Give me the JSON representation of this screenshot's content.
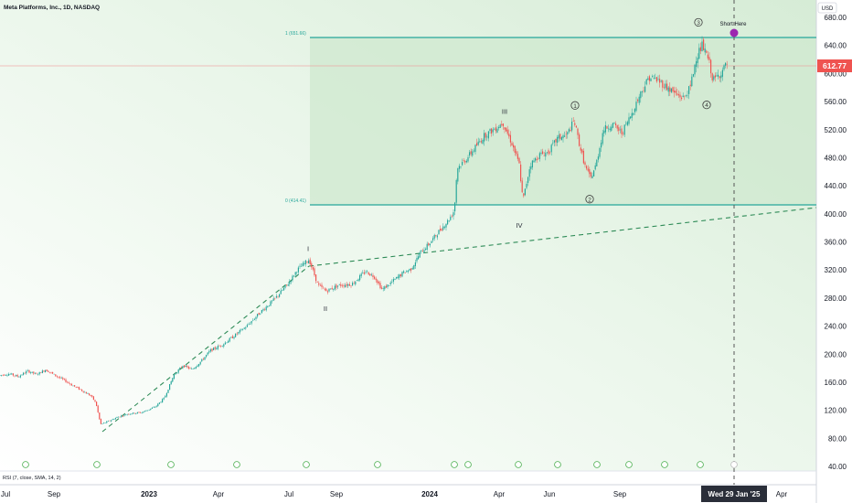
{
  "title": "Meta Platforms, Inc., 1D, NASDAQ",
  "currency": "USD",
  "last_price": "612.77",
  "short_label": "Short Here",
  "rsi_label": "RSI (7, close, SMA, 14, 2)",
  "crosshair_date": "Wed 29 Jan '25",
  "fib_top_label": "1 (651.66)",
  "fib_bottom_label": "0 (414.41)",
  "colors": {
    "up": "#26a69a",
    "down": "#ef5350",
    "fib_zone": "#cfe8cf",
    "trend": "#2e8b57",
    "price_badge": "#ef5350",
    "crosshair_badge": "#2a2e39"
  },
  "chart_data": {
    "type": "candlestick",
    "y_ticks": [
      "680.00",
      "640.00",
      "600.00",
      "560.00",
      "520.00",
      "480.00",
      "440.00",
      "400.00",
      "360.00",
      "320.00",
      "280.00",
      "240.00",
      "200.00",
      "160.00",
      "120.00",
      "80.00",
      "40.00"
    ],
    "ylim": [
      40,
      680
    ],
    "x_ticks": [
      "Jul",
      "Sep",
      "2023",
      "Apr",
      "Jul",
      "Sep",
      "2024",
      "Apr",
      "Jun",
      "Sep",
      "Apr"
    ],
    "fib_levels": [
      {
        "ratio": 1,
        "price": 651.66
      },
      {
        "ratio": 0,
        "price": 414.41
      }
    ],
    "last_price": 612.77,
    "wave_labels": [
      {
        "text": "I",
        "price": 340
      },
      {
        "text": "II",
        "price": 283
      },
      {
        "text": "III",
        "price": 535
      },
      {
        "text": "IV",
        "price": 412
      },
      {
        "text": "1",
        "price": 548
      },
      {
        "text": "2",
        "price": 447
      },
      {
        "text": "3",
        "price": 656
      },
      {
        "text": "4",
        "price": 584
      }
    ],
    "price_path": [
      [
        0,
        170
      ],
      [
        10,
        172
      ],
      [
        20,
        168
      ],
      [
        30,
        176
      ],
      [
        40,
        171
      ],
      [
        50,
        178
      ],
      [
        60,
        170
      ],
      [
        70,
        163
      ],
      [
        80,
        155
      ],
      [
        90,
        148
      ],
      [
        100,
        140
      ],
      [
        105,
        130
      ],
      [
        110,
        100
      ],
      [
        118,
        104
      ],
      [
        128,
        110
      ],
      [
        140,
        115
      ],
      [
        155,
        117
      ],
      [
        170,
        125
      ],
      [
        180,
        138
      ],
      [
        190,
        170
      ],
      [
        200,
        184
      ],
      [
        210,
        178
      ],
      [
        220,
        190
      ],
      [
        230,
        205
      ],
      [
        245,
        215
      ],
      [
        258,
        228
      ],
      [
        270,
        240
      ],
      [
        285,
        260
      ],
      [
        300,
        278
      ],
      [
        315,
        300
      ],
      [
        325,
        320
      ],
      [
        338,
        335
      ],
      [
        348,
        298
      ],
      [
        357,
        290
      ],
      [
        370,
        298
      ],
      [
        385,
        300
      ],
      [
        400,
        318
      ],
      [
        410,
        310
      ],
      [
        418,
        292
      ],
      [
        428,
        302
      ],
      [
        440,
        315
      ],
      [
        450,
        322
      ],
      [
        460,
        345
      ],
      [
        470,
        358
      ],
      [
        480,
        375
      ],
      [
        490,
        390
      ],
      [
        497,
        405
      ],
      [
        500,
        465
      ],
      [
        510,
        478
      ],
      [
        520,
        495
      ],
      [
        530,
        512
      ],
      [
        540,
        520
      ],
      [
        550,
        530
      ],
      [
        560,
        500
      ],
      [
        568,
        470
      ],
      [
        572,
        418
      ],
      [
        580,
        470
      ],
      [
        590,
        484
      ],
      [
        600,
        488
      ],
      [
        610,
        508
      ],
      [
        620,
        512
      ],
      [
        628,
        533
      ],
      [
        634,
        498
      ],
      [
        640,
        468
      ],
      [
        646,
        450
      ],
      [
        652,
        470
      ],
      [
        660,
        520
      ],
      [
        670,
        528
      ],
      [
        680,
        515
      ],
      [
        690,
        540
      ],
      [
        700,
        570
      ],
      [
        710,
        595
      ],
      [
        720,
        590
      ],
      [
        730,
        580
      ],
      [
        740,
        570
      ],
      [
        748,
        565
      ],
      [
        755,
        580
      ],
      [
        762,
        625
      ],
      [
        768,
        640
      ],
      [
        775,
        620
      ],
      [
        780,
        590
      ],
      [
        788,
        600
      ],
      [
        796,
        615
      ]
    ]
  }
}
